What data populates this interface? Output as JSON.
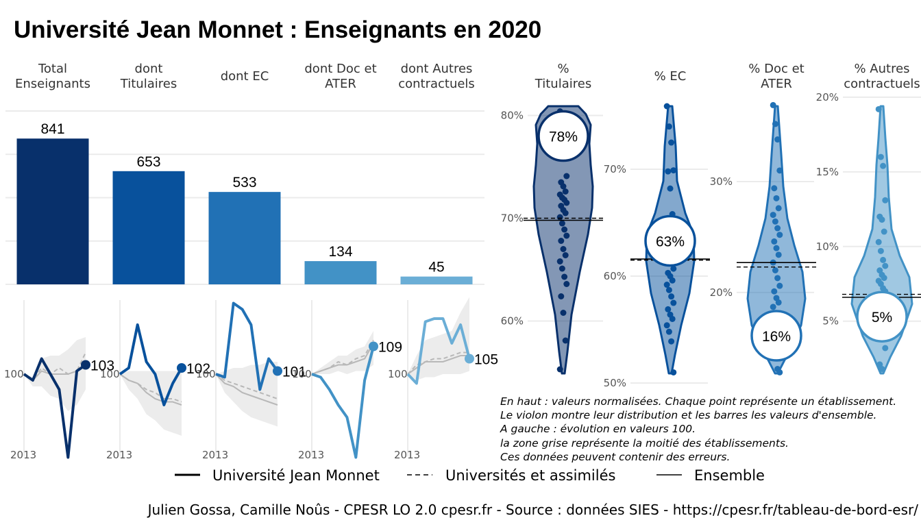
{
  "title": "Université Jean Monnet  :  Enseignants en 2020",
  "colors": {
    "c1": "#08306b",
    "c2": "#08519c",
    "c3": "#2171b5",
    "c4": "#4292c6",
    "c5": "#6baed6",
    "band": "#ececec",
    "ref_line": "#b8b8b8"
  },
  "chart_data": [
    {
      "type": "bar",
      "categories": [
        "Total\nEnseignants",
        "dont\nTitulaires",
        "dont EC",
        "dont Doc et\nATER",
        "dont Autres\ncontractuels"
      ],
      "values": [
        841,
        653,
        533,
        134,
        45
      ],
      "value_labels": [
        "841",
        "653",
        "533",
        "134",
        "45"
      ],
      "ylim": [
        0,
        1000
      ]
    },
    {
      "type": "line",
      "panels": [
        {
          "x": [
            2013,
            2014,
            2015,
            2016,
            2017,
            2018,
            2019,
            2020
          ],
          "series": [
            {
              "name": "Université Jean Monnet",
              "values": [
                100,
                98,
                105,
                100,
                95,
                73,
                101,
                103
              ]
            },
            {
              "name": "Universités et assimilés",
              "values": [
                100,
                98,
                102,
                100,
                102,
                100,
                101,
                107
              ]
            },
            {
              "name": "Ensemble",
              "values": [
                100,
                98,
                101,
                100,
                100,
                100,
                101,
                103
              ]
            }
          ],
          "band_low": [
            100,
            96,
            96,
            93,
            92,
            88,
            90,
            95
          ],
          "band_high": [
            100,
            99,
            105,
            106,
            106,
            108,
            111,
            112
          ],
          "end_label": "103"
        },
        {
          "x": [
            2013,
            2014,
            2015,
            2016,
            2017,
            2018,
            2019,
            2020
          ],
          "series": [
            {
              "name": "Université Jean Monnet",
              "values": [
                100,
                102,
                116,
                104,
                100,
                90,
                97,
                102
              ]
            },
            {
              "name": "Universités et assimilés",
              "values": [
                100,
                98,
                97,
                95,
                94,
                92,
                92,
                91
              ]
            },
            {
              "name": "Ensemble",
              "values": [
                100,
                98,
                97,
                94,
                92,
                91,
                91,
                90
              ]
            }
          ],
          "band_low": [
            100,
            95,
            92,
            87,
            85,
            82,
            81,
            80
          ],
          "band_high": [
            100,
            101,
            101,
            101,
            101,
            101,
            101,
            101
          ],
          "end_label": "102"
        },
        {
          "x": [
            2013,
            2014,
            2015,
            2016,
            2017,
            2018,
            2019,
            2020
          ],
          "series": [
            {
              "name": "Université Jean Monnet",
              "values": [
                100,
                99,
                123,
                121,
                116,
                95,
                105,
                101
              ]
            },
            {
              "name": "Universités et assimilés",
              "values": [
                100,
                98,
                97,
                96,
                95,
                94,
                93,
                92
              ]
            },
            {
              "name": "Ensemble",
              "values": [
                100,
                97,
                96,
                94,
                93,
                92,
                91,
                90
              ]
            }
          ],
          "band_low": [
            100,
            94,
            91,
            88,
            86,
            85,
            84,
            83
          ],
          "band_high": [
            100,
            101,
            102,
            102,
            103,
            103,
            104,
            104
          ],
          "end_label": "101"
        },
        {
          "x": [
            2013,
            2014,
            2015,
            2016,
            2017,
            2018,
            2019,
            2020
          ],
          "series": [
            {
              "name": "Université Jean Monnet",
              "values": [
                100,
                99,
                95,
                90,
                86,
                73,
                98,
                109
              ]
            },
            {
              "name": "Universités et assimilés",
              "values": [
                100,
                101,
                102,
                104,
                103,
                105,
                106,
                111
              ]
            },
            {
              "name": "Ensemble",
              "values": [
                100,
                101,
                102,
                103,
                103,
                104,
                105,
                110
              ]
            }
          ],
          "band_low": [
            100,
            100,
            100,
            101,
            100,
            101,
            101,
            103
          ],
          "band_high": [
            100,
            102,
            104,
            106,
            106,
            108,
            109,
            114
          ],
          "end_label": "109"
        },
        {
          "x": [
            2013,
            2014,
            2015,
            2016,
            2017,
            2018,
            2019,
            2020
          ],
          "series": [
            {
              "name": "Université Jean Monnet",
              "values": [
                100,
                97,
                117,
                118,
                118,
                110,
                116,
                105
              ]
            },
            {
              "name": "Universités et assimilés",
              "values": [
                100,
                103,
                104,
                105,
                105,
                106,
                107,
                107
              ]
            },
            {
              "name": "Ensemble",
              "values": [
                100,
                102,
                104,
                104,
                104,
                105,
                106,
                106
              ]
            }
          ],
          "band_low": [
            100,
            98,
            99,
            99,
            100,
            100,
            100,
            101
          ],
          "band_high": [
            100,
            106,
            111,
            112,
            113,
            114,
            120,
            125
          ],
          "end_label": "105"
        }
      ],
      "xtick_label": "2013",
      "base_label": "100"
    },
    {
      "type": "violin",
      "panels": [
        {
          "header": "%\nTitulaires",
          "value_label": "78%",
          "value": 78,
          "ensemble": 69.8,
          "universites": 70.0,
          "ticks": [
            {
              "v": 60,
              "label": "60%"
            },
            {
              "v": 70,
              "label": "70%"
            },
            {
              "v": 80,
              "label": "80%"
            }
          ],
          "points": [
            80.4,
            78.8,
            77.2,
            74.1,
            73.5,
            73.1,
            72.6,
            72.3,
            72.0,
            71.8,
            71.5,
            71.2,
            70.8,
            70.5,
            70.1,
            69.5,
            68.9,
            68.3,
            67.8,
            67.0,
            66.4,
            65.8,
            65.1,
            64.3,
            63.6,
            62.4,
            60.8,
            58.1,
            55.3
          ]
        },
        {
          "header": "% EC",
          "value_label": "63%",
          "value": 63.3,
          "ensemble": 61.6,
          "universites": 61.5,
          "ticks": [
            {
              "v": 50,
              "label": "50%"
            },
            {
              "v": 60,
              "label": "60%"
            },
            {
              "v": 70,
              "label": "70%"
            }
          ],
          "points": [
            75.9,
            74.0,
            72.5,
            69.9,
            69.8,
            68.2,
            65.8,
            64.2,
            62.0,
            61.3,
            60.7,
            60.3,
            60.0,
            59.6,
            59.2,
            58.7,
            58.1,
            57.5,
            56.9,
            56.4,
            56.0,
            55.4,
            54.8,
            53.9,
            51.0
          ]
        },
        {
          "header": "% Doc et\nATER",
          "value_label": "16%",
          "value": 16.1,
          "ensemble": 22.7,
          "universites": 22.3,
          "ticks": [
            {
              "v": 20,
              "label": "20%"
            },
            {
              "v": 30,
              "label": "30%"
            }
          ],
          "points": [
            36.9,
            35.2,
            33.8,
            31.0,
            29.4,
            28.5,
            27.6,
            27.0,
            26.4,
            25.8,
            25.2,
            24.6,
            24.0,
            23.4,
            22.7,
            22.0,
            21.3,
            20.6,
            20.1,
            19.5,
            19.1,
            18.7,
            14.2,
            13.1,
            12.8
          ]
        },
        {
          "header": "% Autres\ncontractuels",
          "value_label": "5%",
          "value": 5.3,
          "ensemble": 6.6,
          "universites": 6.8,
          "ticks": [
            {
              "v": 5,
              "label": "5%"
            },
            {
              "v": 10,
              "label": "10%"
            },
            {
              "v": 15,
              "label": "15%"
            },
            {
              "v": 20,
              "label": "20%"
            }
          ],
          "points": [
            19.2,
            16.0,
            15.4,
            13.1,
            12.0,
            11.8,
            11.0,
            10.3,
            9.7,
            9.1,
            8.7,
            8.4,
            8.1,
            7.9,
            7.7,
            7.5,
            7.2,
            7.0,
            6.6,
            6.3,
            6.0,
            5.2,
            4.5,
            3.8,
            3.2,
            2.1,
            1.8
          ]
        }
      ]
    }
  ],
  "notes": [
    "En haut : valeurs normalisées. Chaque point représente un établissement.",
    "Le violon montre leur distribution et les barres les valeurs d'ensemble.",
    "A gauche : évolution en valeurs 100.",
    "la zone grise représente la moitié des établissements.",
    "Ces données peuvent contenir des erreurs."
  ],
  "legend": {
    "items": [
      "Université Jean Monnet",
      "Universités et assimilés",
      "Ensemble"
    ]
  },
  "caption": "Julien Gossa, Camille Noûs - CPESR LO 2.0 cpesr.fr - Source : données SIES - https://cpesr.fr/tableau-de-bord-esr/"
}
